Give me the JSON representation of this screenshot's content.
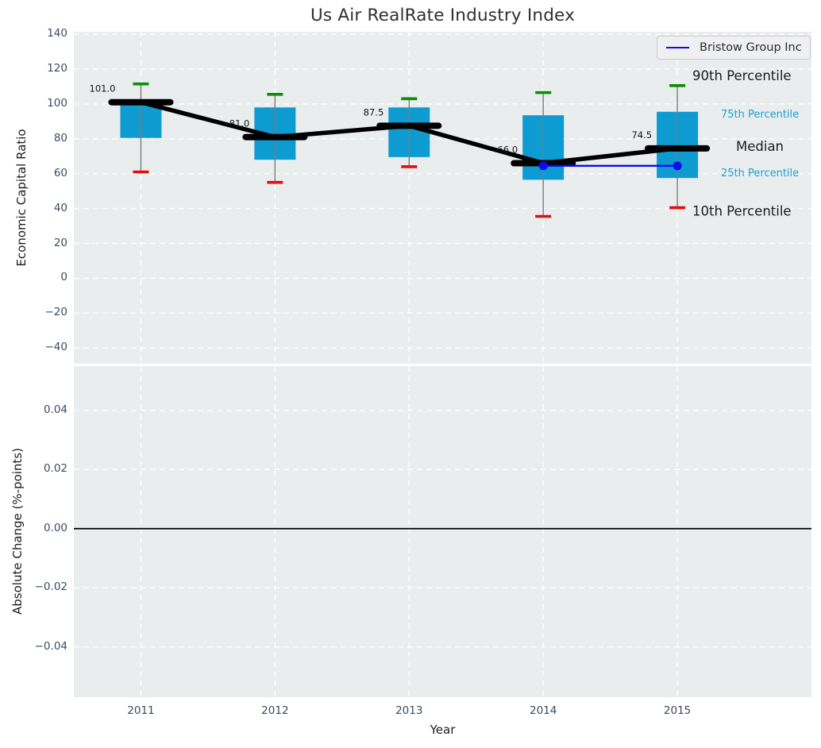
{
  "legend": {
    "label": "Bristow Group Inc"
  },
  "colors": {
    "plot_bg": "#e9edee",
    "grid": "#ffffff",
    "box": "#0d9bd1",
    "whisker": "#7c7c7c",
    "p90_cap": "#089000",
    "p10_cap": "#e80b0b",
    "median": "#000000",
    "company": "#0b0bee",
    "tick_text": "#3c4a5e",
    "annotation_large": "#1a1a1a",
    "annotation_small": "#1b9fd3",
    "zero_line": "#000000"
  },
  "chart_data": [
    {
      "type": "boxplot",
      "title": "Us Air RealRate Industry Index",
      "xlabel": "Year",
      "ylabel": "Economic Capital Ratio",
      "categories": [
        "2011",
        "2012",
        "2013",
        "2014",
        "2015"
      ],
      "x_values": [
        2011,
        2012,
        2013,
        2014,
        2015
      ],
      "xlim": [
        2010.5,
        2016.0
      ],
      "ylim": [
        -49.0,
        141.4
      ],
      "ytick_values": [
        140,
        120,
        100,
        80,
        60,
        40,
        20,
        0,
        -20,
        -40
      ],
      "ytick_labels": [
        "140",
        "120",
        "100",
        "80",
        "60",
        "40",
        "20",
        "0",
        "−20",
        "−40"
      ],
      "grid": true,
      "legend_position": "upper right",
      "boxes": [
        {
          "year": 2011,
          "p10": 61.0,
          "q1": 80.5,
          "median": 101.0,
          "q3": 100.0,
          "p90": 111.5,
          "label": "101.0"
        },
        {
          "year": 2012,
          "p10": 55.0,
          "q1": 68.0,
          "median": 81.0,
          "q3": 98.0,
          "p90": 105.5,
          "label": "81.0"
        },
        {
          "year": 2013,
          "p10": 64.0,
          "q1": 69.5,
          "median": 87.5,
          "q3": 98.0,
          "p90": 103.0,
          "label": "87.5"
        },
        {
          "year": 2014,
          "p10": 35.5,
          "q1": 56.5,
          "median": 66.0,
          "q3": 93.5,
          "p90": 106.5,
          "label": "66.0"
        },
        {
          "year": 2015,
          "p10": 40.5,
          "q1": 57.5,
          "median": 74.5,
          "q3": 95.5,
          "p90": 110.5,
          "label": "74.5"
        }
      ],
      "company_series": {
        "name": "Bristow Group Inc",
        "x": [
          2014,
          2015
        ],
        "y": [
          64.5,
          64.5
        ]
      },
      "annotations": [
        {
          "text": "90th Percentile",
          "style": "large",
          "anchor": "p90"
        },
        {
          "text": "75th Percentile",
          "style": "small",
          "anchor": "q3"
        },
        {
          "text": "Median",
          "style": "large",
          "anchor": "median"
        },
        {
          "text": "25th Percentile",
          "style": "small",
          "anchor": "q1"
        },
        {
          "text": "10th Percentile",
          "style": "large",
          "anchor": "p10"
        }
      ]
    },
    {
      "type": "line",
      "xlabel": "Year",
      "ylabel": "Absolute Change (%-points)",
      "categories": [
        "2011",
        "2012",
        "2013",
        "2014",
        "2015"
      ],
      "x_values": [
        2011,
        2012,
        2013,
        2014,
        2015
      ],
      "xlim": [
        2010.5,
        2016.0
      ],
      "ylim": [
        -0.057,
        0.055
      ],
      "ytick_values": [
        0.04,
        0.02,
        0.0,
        -0.02,
        -0.04
      ],
      "ytick_labels": [
        "0.04",
        "0.02",
        "0.00",
        "−0.02",
        "−0.04"
      ],
      "grid": true,
      "zero_line": 0.0,
      "series": []
    }
  ]
}
